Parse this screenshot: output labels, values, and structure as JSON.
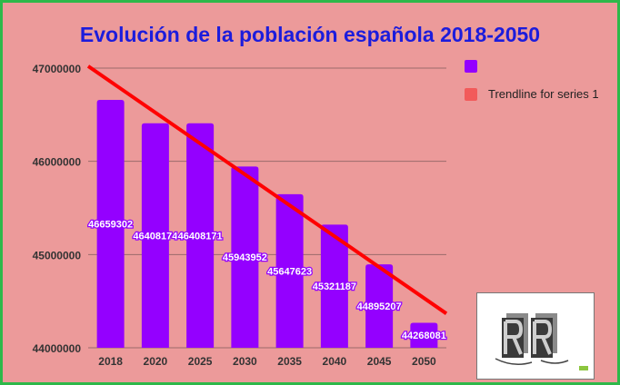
{
  "chart_data": {
    "type": "bar",
    "title": "Evolución de la población española 2018-2050",
    "categories": [
      "2018",
      "2020",
      "2025",
      "2030",
      "2035",
      "2040",
      "2045",
      "2050"
    ],
    "series": [
      {
        "values": [
          46659302,
          46408174,
          46408171,
          45943952,
          45647623,
          45321187,
          44895207,
          44268081
        ],
        "data_labels": [
          "46659302",
          "46408174",
          "46408171",
          "45943952",
          "45647623",
          "45321187",
          "44895207",
          "44268081"
        ],
        "color": "#9400ff"
      }
    ],
    "trendline": {
      "name": "Trendline for series 1",
      "type": "linear",
      "color": "#ff0000"
    },
    "yticks": [
      44000000,
      45000000,
      46000000,
      47000000
    ],
    "ytick_labels": [
      "44000000",
      "45000000",
      "46000000",
      "47000000"
    ],
    "ylim": [
      44000000,
      47000000
    ],
    "xlabel": "",
    "ylabel": "",
    "grid": true,
    "legend_position": "right",
    "background_color": "#ec9a9a",
    "border_color": "#2eb84a",
    "title_color": "#1c1cdc"
  },
  "legend": {
    "bars_label": "",
    "trend_label": "Trendline for series 1"
  },
  "logo": {
    "name": "rr-logo-icon"
  }
}
